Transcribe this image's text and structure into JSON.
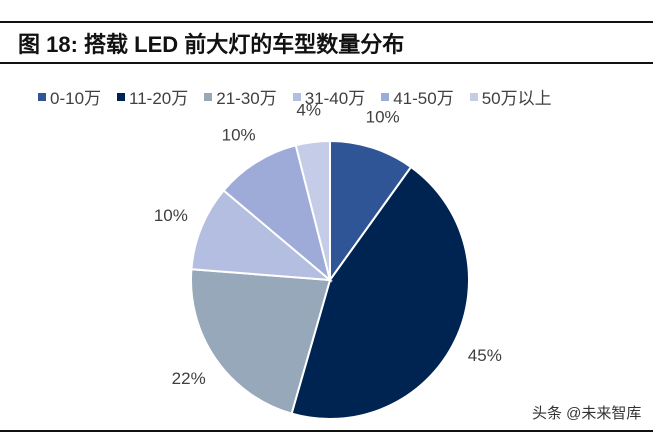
{
  "title": "图 18:  搭载 LED 前大灯的车型数量分布",
  "watermark": "头条 @未来智库",
  "chart_data": {
    "type": "pie",
    "title": "图 18:  搭载 LED 前大灯的车型数量分布",
    "categories": [
      "0-10万",
      "11-20万",
      "21-30万",
      "31-40万",
      "41-50万",
      "50万以上"
    ],
    "values": [
      10,
      45,
      22,
      10,
      10,
      4
    ],
    "labels": [
      "10%",
      "45%",
      "22%",
      "10%",
      "10%",
      "4%"
    ],
    "colors": [
      "#2F5597",
      "#002452",
      "#97A8BA",
      "#B4BEE0",
      "#9EABD8",
      "#C5CCE8"
    ],
    "start": "12 o'clock, clockwise",
    "legend": "top"
  }
}
